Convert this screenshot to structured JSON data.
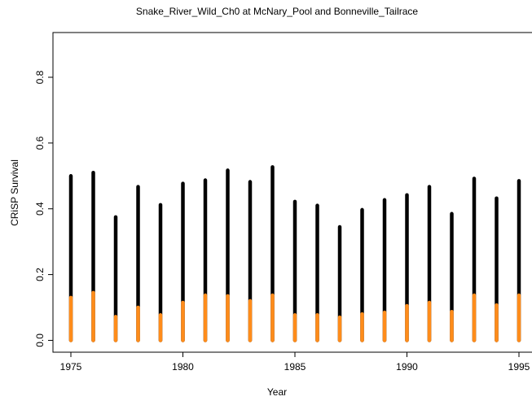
{
  "chart_data": {
    "type": "spike",
    "title": "Snake_River_Wild_Ch0 at  McNary_Pool and Bonneville_Tailrace",
    "x_label": "Year",
    "y_label": "CRiSP Survival",
    "x": [
      1975,
      1976,
      1977,
      1978,
      1979,
      1980,
      1981,
      1982,
      1983,
      1984,
      1985,
      1986,
      1987,
      1988,
      1989,
      1990,
      1991,
      1992,
      1993,
      1994,
      1995
    ],
    "series": [
      {
        "color": "#000000",
        "values": [
          0.5,
          0.51,
          0.375,
          0.467,
          0.412,
          0.477,
          0.487,
          0.517,
          0.482,
          0.527,
          0.422,
          0.41,
          0.345,
          0.397,
          0.427,
          0.442,
          0.467,
          0.385,
          0.492,
          0.432,
          0.485
        ]
      },
      {
        "color": "#ff8c1a",
        "values": [
          0.13,
          0.145,
          0.072,
          0.1,
          0.077,
          0.115,
          0.137,
          0.135,
          0.12,
          0.137,
          0.077,
          0.077,
          0.07,
          0.08,
          0.085,
          0.105,
          0.115,
          0.087,
          0.137,
          0.107,
          0.137
        ]
      }
    ],
    "xlim": [
      1974.2,
      1995.8
    ],
    "xticks": [
      1975,
      1980,
      1985,
      1990,
      1995
    ],
    "ylim": [
      -0.036,
      0.936
    ],
    "yticks": [
      {
        "value": 0,
        "label": "0.0"
      },
      0.2,
      0.4,
      0.6,
      0.8
    ]
  }
}
